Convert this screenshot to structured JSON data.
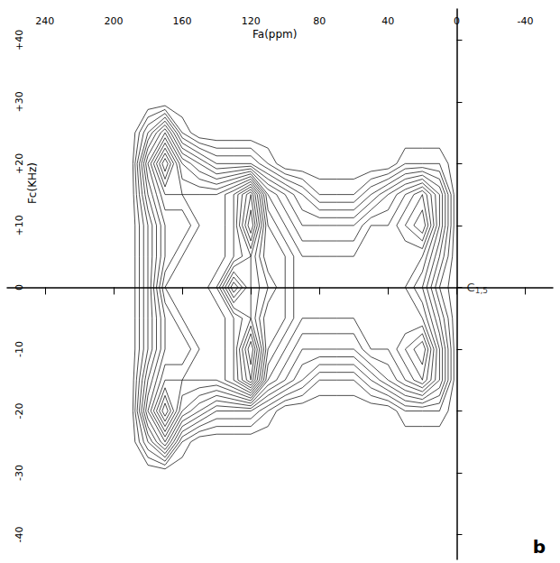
{
  "chart_data": {
    "type": "contour",
    "xlabel": "Fa(ppm)",
    "ylabel": "Fc(KHz)",
    "xlim": [
      262,
      -56
    ],
    "ylim": [
      -44,
      45
    ],
    "xticks": [
      240,
      200,
      160,
      120,
      80,
      40,
      0,
      -40
    ],
    "yticks": [
      {
        "value": 40,
        "label": "+40"
      },
      {
        "value": 30,
        "label": "+30"
      },
      {
        "value": 20,
        "label": "+20"
      },
      {
        "value": 10,
        "label": "+10"
      },
      0,
      -10,
      -20,
      -30,
      -40
    ],
    "fa": [
      190,
      180,
      170,
      160,
      150,
      140,
      130,
      120,
      110,
      100,
      90,
      80,
      70,
      60,
      50,
      40,
      30,
      20,
      10,
      0
    ],
    "fc": [
      -30,
      -25,
      -20,
      -15,
      -10,
      -5,
      0,
      5,
      10,
      15,
      20,
      25,
      30
    ],
    "intensity": [
      [
        0,
        0,
        0,
        0,
        0,
        0,
        0,
        0,
        0,
        0,
        0,
        0,
        0,
        0,
        0,
        0,
        0,
        0,
        0,
        0
      ],
      [
        0,
        2,
        4,
        1,
        0,
        0,
        0,
        0,
        0,
        0,
        0,
        0,
        0,
        0,
        0,
        0,
        0,
        0,
        0,
        0
      ],
      [
        0,
        4,
        7,
        4,
        3,
        2,
        2,
        2,
        1,
        0,
        0,
        0,
        0,
        0,
        0,
        0,
        1,
        1,
        1,
        0
      ],
      [
        0,
        3,
        5,
        5,
        5,
        5,
        6,
        8,
        4,
        3,
        2,
        1,
        1,
        1,
        2,
        3,
        4,
        5,
        3,
        0
      ],
      [
        0,
        2,
        4,
        4,
        5,
        5,
        6,
        9,
        5,
        4,
        3,
        3,
        3,
        3,
        4,
        4,
        5,
        6,
        3,
        0
      ],
      [
        0,
        2,
        4,
        5,
        5,
        5,
        6,
        7,
        5,
        5,
        4,
        4,
        4,
        4,
        4,
        4,
        4,
        4,
        2,
        0
      ],
      [
        0,
        2,
        5,
        5,
        5,
        6,
        9,
        7,
        6,
        5,
        4,
        4,
        4,
        4,
        4,
        4,
        4,
        3,
        1,
        0
      ],
      [
        0,
        2,
        4,
        5,
        5,
        5,
        6,
        7,
        5,
        5,
        4,
        4,
        4,
        4,
        4,
        4,
        4,
        4,
        2,
        0
      ],
      [
        0,
        2,
        4,
        4,
        5,
        5,
        6,
        9,
        5,
        4,
        3,
        3,
        3,
        3,
        4,
        4,
        5,
        6,
        3,
        0
      ],
      [
        0,
        3,
        5,
        5,
        5,
        5,
        6,
        8,
        4,
        3,
        2,
        1,
        1,
        1,
        2,
        3,
        4,
        5,
        3,
        0
      ],
      [
        0,
        4,
        7,
        4,
        3,
        2,
        2,
        2,
        1,
        0,
        0,
        0,
        0,
        0,
        0,
        0,
        1,
        1,
        1,
        0
      ],
      [
        0,
        2,
        4,
        1,
        0,
        0,
        0,
        0,
        0,
        0,
        0,
        0,
        0,
        0,
        0,
        0,
        0,
        0,
        0,
        0
      ],
      [
        0,
        0,
        0,
        0,
        0,
        0,
        0,
        0,
        0,
        0,
        0,
        0,
        0,
        0,
        0,
        0,
        0,
        0,
        0,
        0
      ]
    ],
    "levels": [
      0.5,
      1,
      1.5,
      2,
      2.5,
      3,
      3.5,
      4,
      4.5,
      5,
      5.5,
      6,
      6.5,
      7,
      7.5,
      8,
      8.5
    ],
    "color": "#000000",
    "annotations": [
      {
        "text": "C1,5",
        "x": -12,
        "y": 0
      }
    ],
    "panel": "b"
  }
}
